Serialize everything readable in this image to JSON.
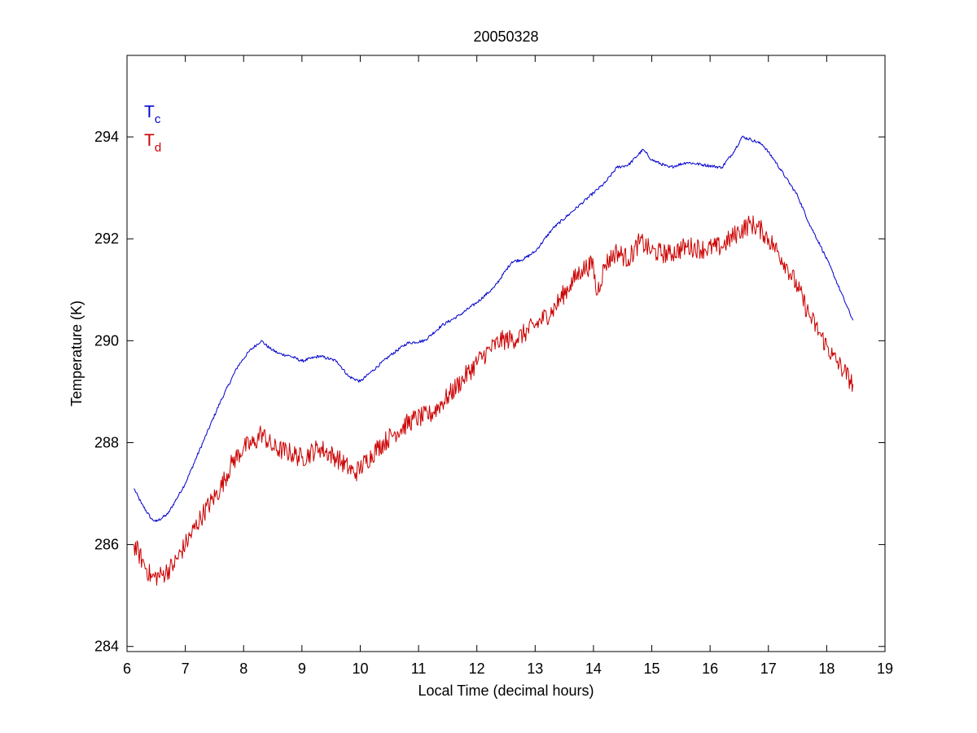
{
  "chart_data": {
    "type": "line",
    "title": "20050328",
    "xlabel": "Local Time (decimal hours)",
    "ylabel": "Temperature (K)",
    "xlim": [
      6,
      19
    ],
    "ylim": [
      283.9,
      295.6
    ],
    "xticks": [
      6,
      7,
      8,
      9,
      10,
      11,
      12,
      13,
      14,
      15,
      16,
      17,
      18,
      19
    ],
    "yticks": [
      284,
      286,
      288,
      290,
      292,
      294
    ],
    "grid": false,
    "legend_placement": "top-left",
    "series": [
      {
        "name": "Tc",
        "legend_main": "T",
        "legend_sub": "c",
        "color": "#0000cc",
        "noise": 0.03,
        "x": [
          6.12,
          6.25,
          6.42,
          6.5,
          6.7,
          7.0,
          7.3,
          7.6,
          7.9,
          8.1,
          8.3,
          8.45,
          8.6,
          8.8,
          9.0,
          9.3,
          9.6,
          9.8,
          10.0,
          10.2,
          10.5,
          10.8,
          11.1,
          11.4,
          11.7,
          12.0,
          12.3,
          12.6,
          12.8,
          13.0,
          13.3,
          13.6,
          13.8,
          14.0,
          14.2,
          14.4,
          14.6,
          14.85,
          15.0,
          15.3,
          15.6,
          15.9,
          16.2,
          16.4,
          16.55,
          16.7,
          16.9,
          17.1,
          17.3,
          17.5,
          17.7,
          17.9,
          18.1,
          18.3,
          18.45
        ],
        "y": [
          287.1,
          286.8,
          286.5,
          286.45,
          286.6,
          287.2,
          288.0,
          288.8,
          289.5,
          289.8,
          290.0,
          289.85,
          289.75,
          289.7,
          289.6,
          289.7,
          289.6,
          289.3,
          289.2,
          289.4,
          289.7,
          289.95,
          290.0,
          290.3,
          290.5,
          290.75,
          291.05,
          291.55,
          291.6,
          291.75,
          292.2,
          292.5,
          292.7,
          292.9,
          293.1,
          293.4,
          293.45,
          293.75,
          293.55,
          293.4,
          293.5,
          293.45,
          293.4,
          293.7,
          294.0,
          293.95,
          293.85,
          293.55,
          293.2,
          292.85,
          292.3,
          291.85,
          291.35,
          290.8,
          290.4
        ]
      },
      {
        "name": "Td",
        "legend_main": "T",
        "legend_sub": "d",
        "color": "#cc0000",
        "noise": 0.2,
        "x": [
          6.12,
          6.3,
          6.42,
          6.6,
          6.8,
          7.0,
          7.3,
          7.6,
          7.8,
          8.0,
          8.2,
          8.3,
          8.5,
          8.8,
          9.0,
          9.3,
          9.6,
          9.9,
          10.0,
          10.3,
          10.6,
          10.9,
          11.2,
          11.5,
          11.8,
          12.1,
          12.4,
          12.7,
          13.0,
          13.3,
          13.6,
          13.8,
          14.0,
          14.05,
          14.2,
          14.4,
          14.6,
          14.8,
          15.0,
          15.3,
          15.6,
          15.9,
          16.2,
          16.5,
          16.7,
          16.9,
          17.1,
          17.3,
          17.5,
          17.7,
          17.9,
          18.1,
          18.3,
          18.45
        ],
        "y": [
          286.0,
          285.6,
          285.35,
          285.4,
          285.6,
          286.0,
          286.6,
          287.1,
          287.6,
          287.9,
          288.0,
          288.2,
          287.9,
          287.8,
          287.7,
          287.9,
          287.7,
          287.4,
          287.5,
          287.9,
          288.2,
          288.45,
          288.55,
          288.9,
          289.3,
          289.7,
          290.0,
          290.05,
          290.3,
          290.6,
          291.1,
          291.4,
          291.5,
          290.9,
          291.5,
          291.75,
          291.6,
          291.95,
          291.75,
          291.7,
          291.85,
          291.8,
          291.85,
          292.15,
          292.3,
          292.15,
          291.85,
          291.5,
          291.05,
          290.5,
          290.1,
          289.7,
          289.4,
          289.15
        ]
      }
    ]
  }
}
